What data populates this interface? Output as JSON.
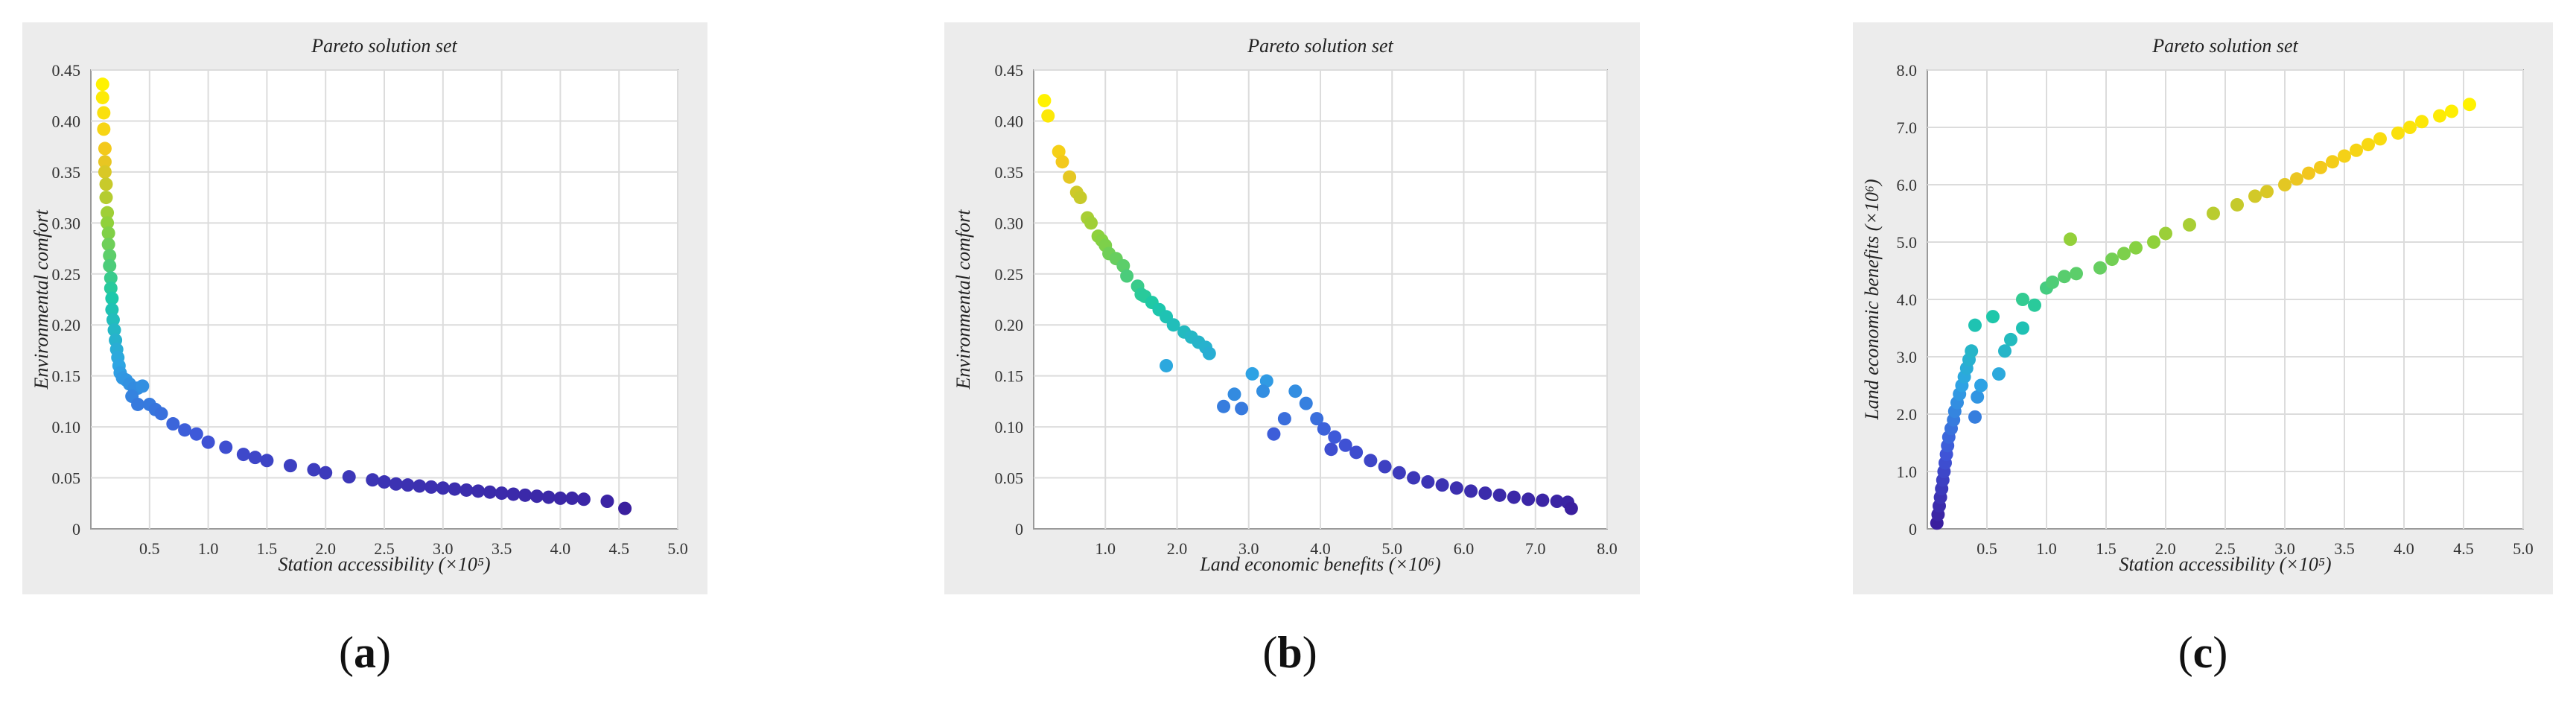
{
  "figure": {
    "captions": [
      "a",
      "b",
      "c"
    ]
  },
  "chart_data": [
    {
      "type": "scatter",
      "title": "Pareto solution set",
      "xlabel": "Station accessibility (×10⁵)",
      "ylabel": "Environmental comfort",
      "xlim": [
        0,
        5.0
      ],
      "ylim": [
        0,
        0.45
      ],
      "xticks": [
        "0.5",
        "1.0",
        "1.5",
        "2.0",
        "2.5",
        "3.0",
        "3.5",
        "4.0",
        "4.5",
        "5.0"
      ],
      "yticks": [
        "0",
        "0.05",
        "0.10",
        "0.15",
        "0.20",
        "0.25",
        "0.30",
        "0.35",
        "0.40",
        "0.45"
      ],
      "grid": true,
      "colormap": [
        "#3a1f9e",
        "#3f55d8",
        "#2ea4e4",
        "#1cc9a8",
        "#8cd13c",
        "#f2c51f",
        "#fff200"
      ],
      "points": [
        [
          0.1,
          0.436
        ],
        [
          0.1,
          0.423
        ],
        [
          0.11,
          0.408
        ],
        [
          0.11,
          0.392
        ],
        [
          0.12,
          0.373
        ],
        [
          0.12,
          0.36
        ],
        [
          0.12,
          0.35
        ],
        [
          0.13,
          0.338
        ],
        [
          0.13,
          0.325
        ],
        [
          0.14,
          0.31
        ],
        [
          0.14,
          0.3
        ],
        [
          0.15,
          0.29
        ],
        [
          0.15,
          0.279
        ],
        [
          0.16,
          0.268
        ],
        [
          0.16,
          0.258
        ],
        [
          0.17,
          0.246
        ],
        [
          0.17,
          0.236
        ],
        [
          0.18,
          0.226
        ],
        [
          0.18,
          0.215
        ],
        [
          0.19,
          0.205
        ],
        [
          0.2,
          0.195
        ],
        [
          0.21,
          0.185
        ],
        [
          0.22,
          0.176
        ],
        [
          0.23,
          0.168
        ],
        [
          0.24,
          0.16
        ],
        [
          0.25,
          0.153
        ],
        [
          0.27,
          0.148
        ],
        [
          0.3,
          0.146
        ],
        [
          0.33,
          0.142
        ],
        [
          0.37,
          0.138
        ],
        [
          0.4,
          0.138
        ],
        [
          0.44,
          0.14
        ],
        [
          0.35,
          0.13
        ],
        [
          0.4,
          0.122
        ],
        [
          0.5,
          0.122
        ],
        [
          0.55,
          0.117
        ],
        [
          0.6,
          0.113
        ],
        [
          0.7,
          0.103
        ],
        [
          0.8,
          0.097
        ],
        [
          0.9,
          0.093
        ],
        [
          1.0,
          0.085
        ],
        [
          1.15,
          0.08
        ],
        [
          1.3,
          0.073
        ],
        [
          1.4,
          0.07
        ],
        [
          1.5,
          0.067
        ],
        [
          1.7,
          0.062
        ],
        [
          1.9,
          0.058
        ],
        [
          2.0,
          0.055
        ],
        [
          2.2,
          0.051
        ],
        [
          2.4,
          0.048
        ],
        [
          2.5,
          0.046
        ],
        [
          2.6,
          0.044
        ],
        [
          2.7,
          0.043
        ],
        [
          2.8,
          0.042
        ],
        [
          2.9,
          0.041
        ],
        [
          3.0,
          0.04
        ],
        [
          3.1,
          0.039
        ],
        [
          3.2,
          0.038
        ],
        [
          3.3,
          0.037
        ],
        [
          3.4,
          0.036
        ],
        [
          3.5,
          0.035
        ],
        [
          3.6,
          0.034
        ],
        [
          3.7,
          0.033
        ],
        [
          3.8,
          0.032
        ],
        [
          3.9,
          0.031
        ],
        [
          4.0,
          0.03
        ],
        [
          4.1,
          0.03
        ],
        [
          4.2,
          0.029
        ],
        [
          4.4,
          0.027
        ],
        [
          4.55,
          0.02
        ]
      ]
    },
    {
      "type": "scatter",
      "title": "Pareto solution set",
      "xlabel": "Land economic benefits (×10⁶)",
      "ylabel": "Environmental comfort",
      "xlim": [
        0,
        8.0
      ],
      "ylim": [
        0,
        0.45
      ],
      "xticks": [
        "1.0",
        "2.0",
        "3.0",
        "4.0",
        "5.0",
        "6.0",
        "7.0",
        "8.0"
      ],
      "yticks": [
        "0",
        "0.05",
        "0.10",
        "0.15",
        "0.20",
        "0.25",
        "0.30",
        "0.35",
        "0.40",
        "0.45"
      ],
      "grid": true,
      "colormap": [
        "#3a1f9e",
        "#3f55d8",
        "#2ea4e4",
        "#1cc9a8",
        "#8cd13c",
        "#f2c51f",
        "#fff200"
      ],
      "points": [
        [
          0.15,
          0.42
        ],
        [
          0.2,
          0.405
        ],
        [
          0.35,
          0.37
        ],
        [
          0.4,
          0.36
        ],
        [
          0.5,
          0.345
        ],
        [
          0.6,
          0.33
        ],
        [
          0.65,
          0.325
        ],
        [
          0.75,
          0.305
        ],
        [
          0.8,
          0.3
        ],
        [
          0.9,
          0.287
        ],
        [
          0.95,
          0.283
        ],
        [
          1.0,
          0.278
        ],
        [
          1.05,
          0.27
        ],
        [
          1.15,
          0.265
        ],
        [
          1.25,
          0.258
        ],
        [
          1.3,
          0.248
        ],
        [
          1.45,
          0.238
        ],
        [
          1.5,
          0.23
        ],
        [
          1.55,
          0.228
        ],
        [
          1.65,
          0.222
        ],
        [
          1.75,
          0.215
        ],
        [
          1.85,
          0.208
        ],
        [
          1.95,
          0.2
        ],
        [
          2.1,
          0.193
        ],
        [
          2.2,
          0.188
        ],
        [
          2.3,
          0.183
        ],
        [
          2.4,
          0.178
        ],
        [
          2.45,
          0.172
        ],
        [
          1.85,
          0.16
        ],
        [
          2.65,
          0.12
        ],
        [
          2.8,
          0.132
        ],
        [
          2.9,
          0.118
        ],
        [
          3.05,
          0.152
        ],
        [
          3.25,
          0.145
        ],
        [
          3.2,
          0.135
        ],
        [
          3.35,
          0.093
        ],
        [
          3.5,
          0.108
        ],
        [
          3.65,
          0.135
        ],
        [
          3.8,
          0.123
        ],
        [
          3.95,
          0.108
        ],
        [
          4.05,
          0.098
        ],
        [
          4.15,
          0.078
        ],
        [
          4.2,
          0.09
        ],
        [
          4.35,
          0.082
        ],
        [
          4.5,
          0.075
        ],
        [
          4.7,
          0.067
        ],
        [
          4.9,
          0.061
        ],
        [
          5.1,
          0.055
        ],
        [
          5.3,
          0.05
        ],
        [
          5.5,
          0.046
        ],
        [
          5.7,
          0.043
        ],
        [
          5.9,
          0.04
        ],
        [
          6.1,
          0.037
        ],
        [
          6.3,
          0.035
        ],
        [
          6.5,
          0.033
        ],
        [
          6.7,
          0.031
        ],
        [
          6.9,
          0.029
        ],
        [
          7.1,
          0.028
        ],
        [
          7.3,
          0.027
        ],
        [
          7.45,
          0.026
        ],
        [
          7.5,
          0.02
        ]
      ]
    },
    {
      "type": "scatter",
      "title": "Pareto solution set",
      "xlabel": "Station accessibility (×10⁵)",
      "ylabel": "Land economic benefits (×10⁶)",
      "xlim": [
        0,
        5.0
      ],
      "ylim": [
        0,
        8.0
      ],
      "xticks": [
        "0.5",
        "1.0",
        "1.5",
        "2.0",
        "2.5",
        "3.0",
        "3.5",
        "4.0",
        "4.5",
        "5.0"
      ],
      "yticks": [
        "0",
        "1.0",
        "2.0",
        "3.0",
        "4.0",
        "5.0",
        "6.0",
        "7.0",
        "8.0"
      ],
      "grid": true,
      "colormap": [
        "#3a1f9e",
        "#3f55d8",
        "#2ea4e4",
        "#1cc9a8",
        "#8cd13c",
        "#f2c51f",
        "#fff200"
      ],
      "points": [
        [
          0.08,
          0.1
        ],
        [
          0.09,
          0.25
        ],
        [
          0.1,
          0.4
        ],
        [
          0.11,
          0.55
        ],
        [
          0.12,
          0.7
        ],
        [
          0.13,
          0.85
        ],
        [
          0.14,
          1.0
        ],
        [
          0.15,
          1.15
        ],
        [
          0.16,
          1.3
        ],
        [
          0.17,
          1.45
        ],
        [
          0.18,
          1.6
        ],
        [
          0.2,
          1.75
        ],
        [
          0.22,
          1.9
        ],
        [
          0.23,
          2.05
        ],
        [
          0.25,
          2.2
        ],
        [
          0.27,
          2.35
        ],
        [
          0.29,
          2.5
        ],
        [
          0.31,
          2.65
        ],
        [
          0.33,
          2.8
        ],
        [
          0.35,
          2.95
        ],
        [
          0.37,
          3.1
        ],
        [
          0.4,
          1.95
        ],
        [
          0.42,
          2.3
        ],
        [
          0.45,
          2.5
        ],
        [
          0.4,
          3.55
        ],
        [
          0.55,
          3.7
        ],
        [
          0.6,
          2.7
        ],
        [
          0.65,
          3.1
        ],
        [
          0.7,
          3.3
        ],
        [
          0.8,
          3.5
        ],
        [
          0.8,
          4.0
        ],
        [
          0.9,
          3.9
        ],
        [
          1.0,
          4.2
        ],
        [
          1.05,
          4.3
        ],
        [
          1.15,
          4.4
        ],
        [
          1.25,
          4.45
        ],
        [
          1.2,
          5.05
        ],
        [
          1.45,
          4.55
        ],
        [
          1.55,
          4.7
        ],
        [
          1.65,
          4.8
        ],
        [
          1.75,
          4.9
        ],
        [
          1.9,
          5.0
        ],
        [
          2.0,
          5.15
        ],
        [
          2.2,
          5.3
        ],
        [
          2.4,
          5.5
        ],
        [
          2.6,
          5.65
        ],
        [
          2.75,
          5.8
        ],
        [
          2.85,
          5.88
        ],
        [
          3.0,
          6.0
        ],
        [
          3.1,
          6.1
        ],
        [
          3.2,
          6.2
        ],
        [
          3.3,
          6.3
        ],
        [
          3.4,
          6.4
        ],
        [
          3.5,
          6.5
        ],
        [
          3.6,
          6.6
        ],
        [
          3.7,
          6.7
        ],
        [
          3.8,
          6.8
        ],
        [
          3.95,
          6.9
        ],
        [
          4.05,
          7.0
        ],
        [
          4.15,
          7.1
        ],
        [
          4.3,
          7.2
        ],
        [
          4.4,
          7.28
        ],
        [
          4.55,
          7.4
        ]
      ]
    }
  ]
}
